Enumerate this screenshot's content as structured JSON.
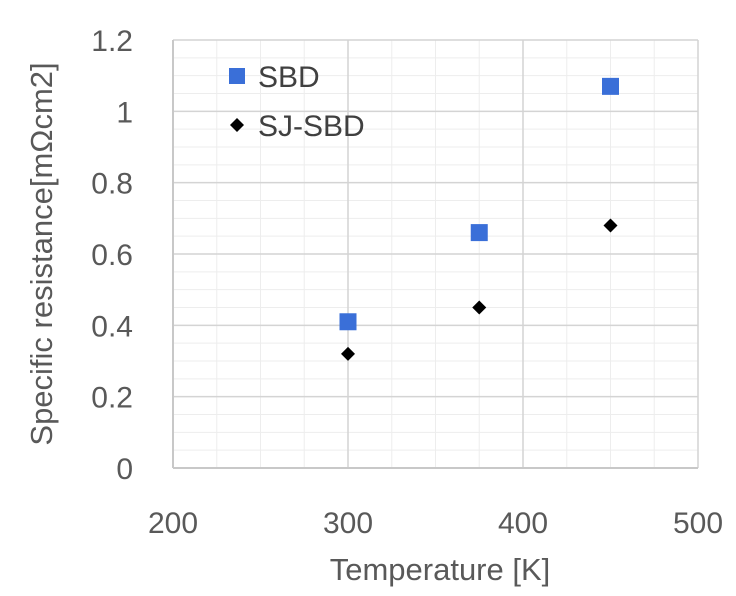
{
  "chart_data": {
    "type": "scatter",
    "title": "",
    "xlabel": "Temperature [K]",
    "ylabel": "Specific resistance[mΩcm2]",
    "xlim": [
      200,
      500
    ],
    "ylim": [
      0,
      1.2
    ],
    "x_ticks": [
      "200",
      "300",
      "400",
      "500"
    ],
    "y_ticks": [
      "0",
      "0.2",
      "0.4",
      "0.6",
      "0.8",
      "1",
      "1.2"
    ],
    "grid": true,
    "legend_position": "top-left",
    "series": [
      {
        "name": "SBD",
        "marker": "square",
        "color": "#3a6fd8",
        "x": [
          300,
          375,
          450
        ],
        "y": [
          0.41,
          0.66,
          1.07
        ]
      },
      {
        "name": "SJ-SBD",
        "marker": "diamond",
        "color": "#000000",
        "x": [
          300,
          375,
          450
        ],
        "y": [
          0.32,
          0.45,
          0.68
        ]
      }
    ]
  }
}
